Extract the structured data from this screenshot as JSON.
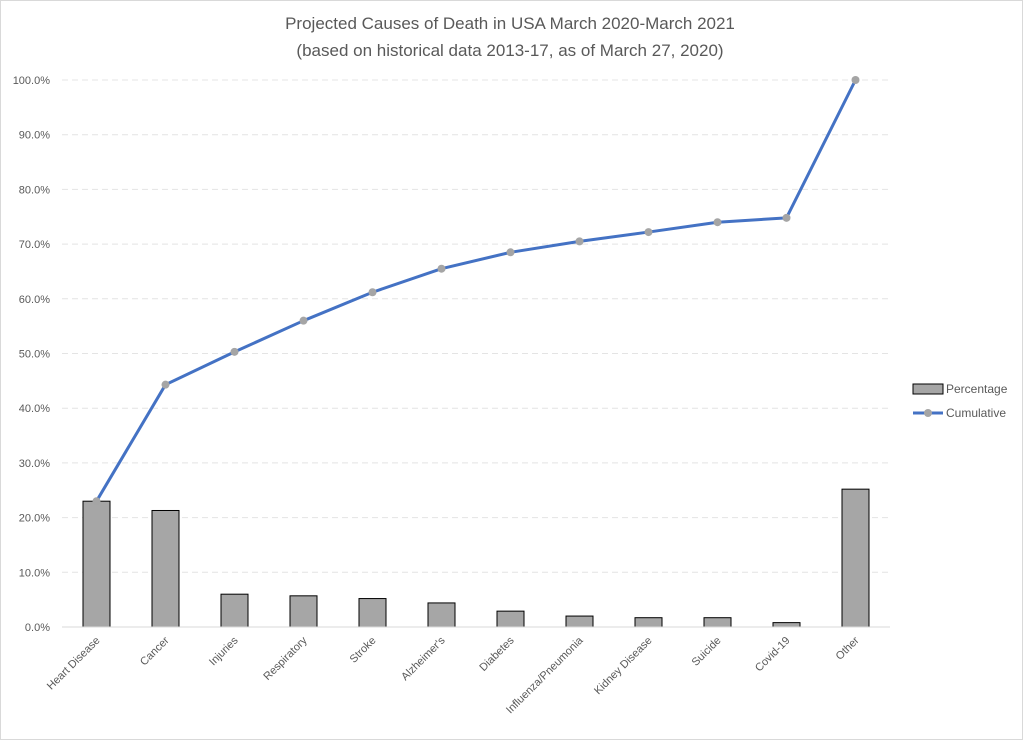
{
  "chart_data": {
    "type": "bar+line",
    "title": "Projected Causes of Death in USA March 2020-March 2021",
    "subtitle": "(based on historical data 2013-17, as of March 27, 2020)",
    "categories": [
      "Heart Disease",
      "Cancer",
      "Injuries",
      "Respiratory",
      "Stroke",
      "Alzheimer's",
      "Diabetes",
      "Influenza/Pneumonia",
      "Kidney Disease",
      "Suicide",
      "Covid-19",
      "Other"
    ],
    "y_ticks": [
      "0.0%",
      "10.0%",
      "20.0%",
      "30.0%",
      "40.0%",
      "50.0%",
      "60.0%",
      "70.0%",
      "80.0%",
      "90.0%",
      "100.0%"
    ],
    "ylim": [
      0,
      100
    ],
    "grid": true,
    "legend_position": "right",
    "series": [
      {
        "name": "Percentage",
        "kind": "bar",
        "color": "#a6a6a6",
        "stroke": "#000000",
        "values": [
          23.0,
          21.3,
          6.0,
          5.7,
          5.2,
          4.4,
          2.9,
          2.0,
          1.7,
          1.7,
          0.8,
          25.2
        ]
      },
      {
        "name": "Cumulative",
        "kind": "line",
        "color": "#4472c4",
        "marker_color": "#a5a5a5",
        "values": [
          23.0,
          44.3,
          50.3,
          56.0,
          61.2,
          65.5,
          68.5,
          70.5,
          72.2,
          74.0,
          74.8,
          100.0
        ]
      }
    ]
  }
}
